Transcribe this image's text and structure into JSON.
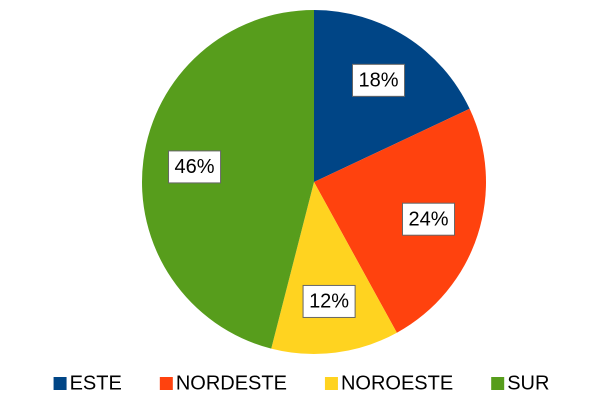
{
  "chart_data": {
    "type": "pie",
    "categories": [
      "ESTE",
      "NORDESTE",
      "NOROESTE",
      "SUR"
    ],
    "values": [
      18,
      24,
      12,
      46
    ],
    "value_labels": [
      "18%",
      "24%",
      "12%",
      "46%"
    ],
    "colors": [
      "#004586",
      "#ff420e",
      "#ffd320",
      "#579d1c"
    ],
    "legend": "bottom"
  }
}
